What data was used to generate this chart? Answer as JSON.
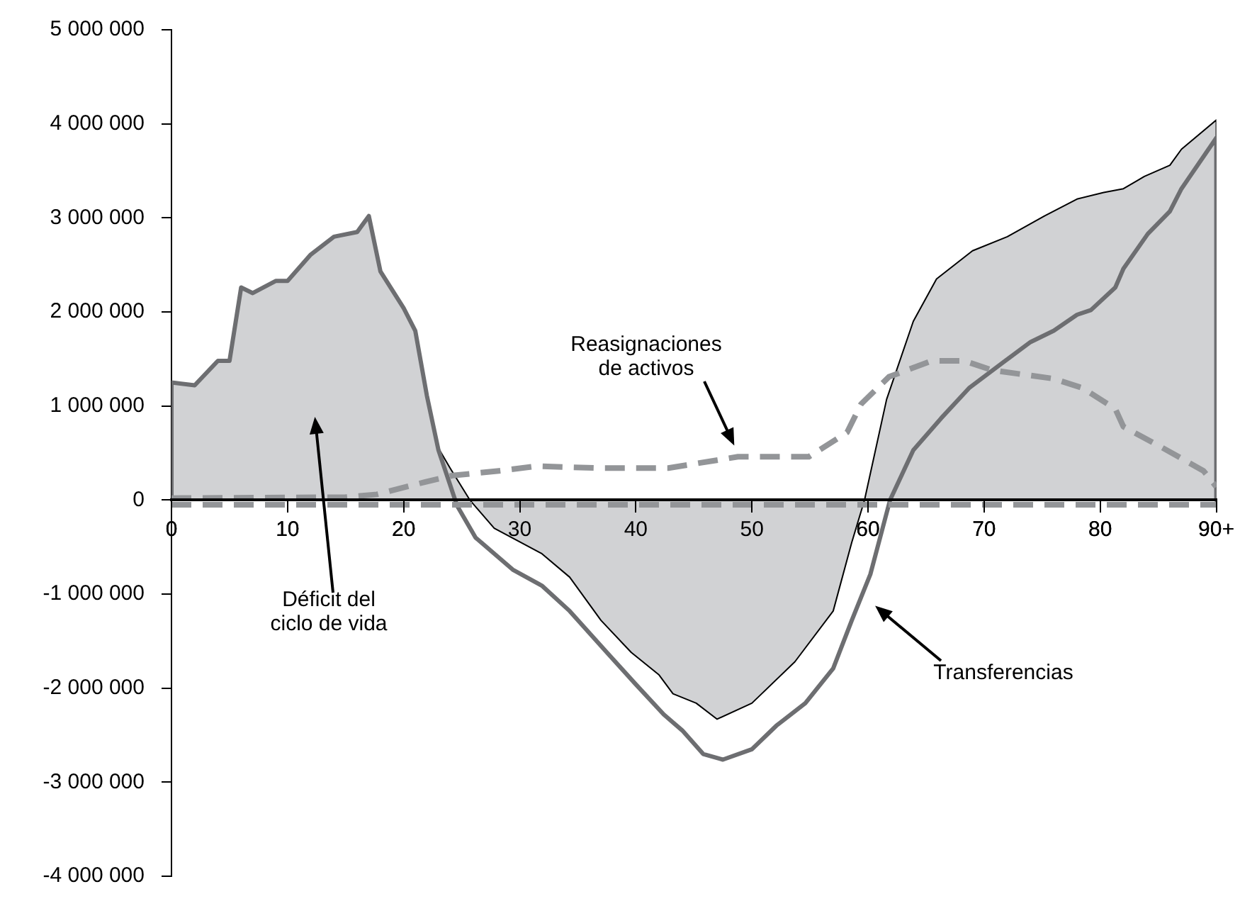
{
  "chart_data": {
    "type": "line",
    "xlim": [
      0,
      90
    ],
    "xticks": [
      0,
      10,
      20,
      30,
      40,
      50,
      60,
      70,
      80,
      {
        "value": 90,
        "label": "90+"
      }
    ],
    "ylim": [
      -4000000,
      5000000
    ],
    "yticks": [
      {
        "value": -4000000,
        "label": "-4 000 000"
      },
      {
        "value": -3000000,
        "label": "-3 000 000"
      },
      {
        "value": -2000000,
        "label": "-2 000 000"
      },
      {
        "value": -1000000,
        "label": "-1 000 000"
      },
      {
        "value": 0,
        "label": "0"
      },
      {
        "value": 1000000,
        "label": "1 000 000"
      },
      {
        "value": 2000000,
        "label": "2 000 000"
      },
      {
        "value": 3000000,
        "label": "3 000 000"
      },
      {
        "value": 4000000,
        "label": "4 000 000"
      },
      {
        "value": 5000000,
        "label": "5 000 000"
      }
    ],
    "grid": false,
    "legend": false,
    "marker": "none",
    "series": [
      {
        "type": "area",
        "color": "#d1d2d4",
        "x": [
          0,
          0,
          2,
          4,
          5,
          6,
          7,
          9,
          10,
          12,
          14,
          16,
          17,
          18,
          20,
          21,
          22,
          23,
          24,
          25.7,
          27.8,
          31.9,
          34.3,
          37,
          39.6,
          42,
          43.2,
          45.2,
          47,
          50,
          53.7,
          57,
          58.6,
          59.7,
          61.6,
          63.9,
          65.9,
          69,
          72,
          75.2,
          78,
          80.3,
          82,
          83.8,
          86,
          87,
          90,
          90
        ],
        "values": [
          0,
          1250000,
          1220000,
          1480000,
          1480000,
          2260000,
          2200000,
          2330000,
          2330000,
          2610000,
          2800000,
          2850000,
          3020000,
          2430000,
          2040000,
          1800000,
          1110000,
          550000,
          340000,
          0,
          -300000,
          -570000,
          -820000,
          -1280000,
          -1620000,
          -1860000,
          -2060000,
          -2160000,
          -2330000,
          -2160000,
          -1720000,
          -1180000,
          -450000,
          0,
          1070000,
          1900000,
          2350000,
          2650000,
          2800000,
          3020000,
          3200000,
          3270000,
          3310000,
          3440000,
          3560000,
          3730000,
          4040000,
          0
        ]
      },
      {
        "type": "line",
        "color": "#6d6e71",
        "x": [
          0,
          0,
          2,
          4,
          5,
          6,
          7,
          9,
          10,
          12,
          14,
          16,
          17,
          18,
          20,
          21,
          22,
          23,
          24.6,
          26.2,
          29.4,
          31.9,
          34.3,
          37.5,
          40,
          42.4,
          44,
          45.8,
          47.5,
          50,
          52.1,
          54.6,
          57,
          58.6,
          60.2,
          61.9,
          63.9,
          66.3,
          68.7,
          71.6,
          74,
          76,
          78,
          79.2,
          81.3,
          82,
          84.1,
          86,
          87,
          90,
          90
        ],
        "values": [
          0,
          1250000,
          1220000,
          1480000,
          1480000,
          2260000,
          2200000,
          2330000,
          2330000,
          2610000,
          2800000,
          2850000,
          3020000,
          2430000,
          2040000,
          1800000,
          1110000,
          530000,
          -60000,
          -400000,
          -740000,
          -910000,
          -1180000,
          -1620000,
          -1960000,
          -2280000,
          -2450000,
          -2700000,
          -2760000,
          -2650000,
          -2400000,
          -2160000,
          -1790000,
          -1280000,
          -790000,
          0,
          530000,
          870000,
          1190000,
          1460000,
          1680000,
          1800000,
          1970000,
          2020000,
          2260000,
          2460000,
          2830000,
          3070000,
          3310000,
          3850000,
          0
        ]
      },
      {
        "type": "line",
        "color": "#939598",
        "line_style": "dashed",
        "x": [
          0,
          15,
          17.7,
          21.8,
          24.2,
          28.2,
          31.5,
          36.7,
          42.8,
          48.8,
          54.9,
          58.2,
          59.4,
          61.8,
          65.5,
          68.3,
          70.7,
          76,
          78.5,
          81.3,
          82,
          85.3,
          88.9,
          90
        ],
        "values": [
          20000,
          30000,
          60000,
          190000,
          260000,
          310000,
          360000,
          340000,
          340000,
          460000,
          460000,
          720000,
          1020000,
          1310000,
          1480000,
          1480000,
          1380000,
          1290000,
          1190000,
          970000,
          780000,
          560000,
          310000,
          140000
        ]
      },
      {
        "type": "line",
        "color": "#939598",
        "line_style": "dashed",
        "x": [
          0,
          10,
          20,
          30,
          40,
          50,
          60,
          70,
          80,
          90
        ],
        "values": [
          -50000,
          -50000,
          -50000,
          -50000,
          -50000,
          -50000,
          -50000,
          -50000,
          -50000,
          -50000
        ]
      }
    ],
    "annotations": [
      "Déficit del\nciclo de vida",
      "Reasignaciones\nde activos",
      "Transferencias"
    ]
  }
}
